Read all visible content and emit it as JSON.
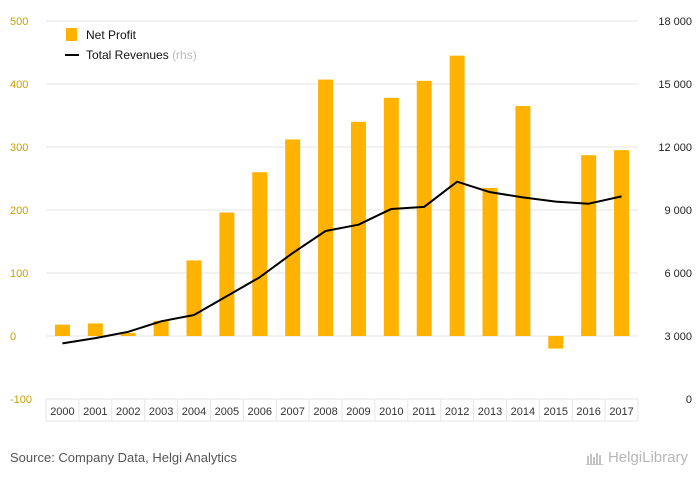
{
  "colors": {
    "bar": "#FFB300",
    "line": "#000000",
    "grid": "#e6e6e6",
    "left_axis_text": "#c9a000"
  },
  "footer": {
    "source": "Source: Company Data, Helgi Analytics",
    "logo_text": "HelgiLibrary"
  },
  "chart_data": {
    "type": "bar",
    "categories": [
      "2000",
      "2001",
      "2002",
      "2003",
      "2004",
      "2005",
      "2006",
      "2007",
      "2008",
      "2009",
      "2010",
      "2011",
      "2012",
      "2013",
      "2014",
      "2015",
      "2016",
      "2017"
    ],
    "series": [
      {
        "name": "Net Profit",
        "type": "bar",
        "axis": "left",
        "values": [
          18,
          20,
          5,
          24,
          120,
          196,
          260,
          312,
          407,
          340,
          378,
          405,
          445,
          235,
          365,
          -20,
          287,
          295
        ]
      },
      {
        "name": "Total Revenues",
        "legend_suffix": "(rhs)",
        "type": "line",
        "axis": "right",
        "values": [
          2650,
          2900,
          3200,
          3700,
          4000,
          4900,
          5800,
          6950,
          8000,
          8300,
          9050,
          9150,
          10350,
          9850,
          9600,
          9400,
          9300,
          9650
        ]
      }
    ],
    "left_axis": {
      "ylim": [
        -100,
        500
      ],
      "ticks": [
        "500",
        "400",
        "300",
        "200",
        "100",
        "0",
        "-100"
      ]
    },
    "right_axis": {
      "ylim": [
        0,
        18000
      ],
      "ticks": [
        "18 000",
        "15 000",
        "12 000",
        "9 000",
        "6 000",
        "3 000",
        "0"
      ]
    },
    "grid": true,
    "legend_position": "top-left"
  }
}
